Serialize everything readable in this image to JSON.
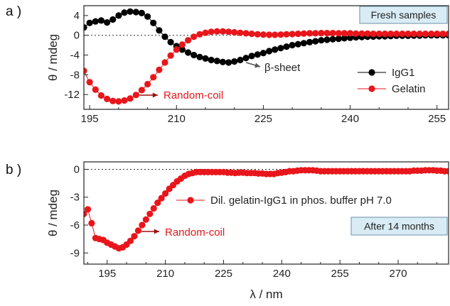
{
  "chart_data": [
    {
      "type": "scatter",
      "panel_label": "a )",
      "ylabel": "θ / mdeg",
      "xlabel": "",
      "xlim": [
        194,
        257
      ],
      "ylim": [
        -15,
        6
      ],
      "xticks": [
        195,
        210,
        225,
        240,
        255
      ],
      "yticks": [
        4,
        0,
        -4,
        -8,
        -12
      ],
      "zero_line": true,
      "box_label": "Fresh samples",
      "legend_position": "right",
      "series": [
        {
          "name": "IgG1",
          "color": "#000000",
          "x": [
            194,
            195,
            196,
            197,
            198,
            199,
            200,
            201,
            202,
            203,
            204,
            205,
            206,
            207,
            208,
            209,
            210,
            211,
            212,
            213,
            214,
            215,
            216,
            217,
            218,
            219,
            220,
            221,
            222,
            223,
            224,
            225,
            226,
            227,
            228,
            229,
            230,
            231,
            232,
            233,
            234,
            235,
            236,
            237,
            238,
            239,
            240,
            241,
            242,
            243,
            244,
            245,
            246,
            247,
            248,
            249,
            250,
            251,
            252,
            253,
            254,
            255,
            256,
            257
          ],
          "y": [
            1.6,
            2.5,
            2.8,
            3.0,
            2.6,
            3.2,
            4.0,
            4.6,
            4.8,
            4.7,
            4.5,
            3.8,
            2.5,
            1.0,
            -0.3,
            -1.4,
            -2.2,
            -2.9,
            -3.5,
            -4.0,
            -4.4,
            -4.7,
            -5.0,
            -5.2,
            -5.4,
            -5.5,
            -5.3,
            -5.0,
            -4.6,
            -4.2,
            -3.9,
            -3.6,
            -3.2,
            -2.9,
            -2.6,
            -2.3,
            -2.0,
            -1.8,
            -1.6,
            -1.4,
            -1.2,
            -1.0,
            -0.9,
            -0.8,
            -0.7,
            -0.6,
            -0.5,
            -0.4,
            -0.35,
            -0.3,
            -0.25,
            -0.2,
            -0.2,
            -0.15,
            -0.1,
            -0.1,
            -0.1,
            -0.05,
            -0.05,
            0.0,
            0.0,
            0.0,
            0.0,
            0.0
          ]
        },
        {
          "name": "Gelatin",
          "color": "#e8161b",
          "x": [
            194,
            195,
            196,
            197,
            198,
            199,
            200,
            201,
            202,
            203,
            204,
            205,
            206,
            207,
            208,
            209,
            210,
            211,
            212,
            213,
            214,
            215,
            216,
            217,
            218,
            219,
            220,
            221,
            222,
            223,
            224,
            225,
            226,
            227,
            228,
            229,
            230,
            231,
            232,
            233,
            234,
            235,
            236,
            237,
            238,
            239,
            240,
            241,
            242,
            243,
            244,
            245,
            246,
            247,
            248,
            249,
            250,
            251,
            252,
            253,
            254,
            255,
            256,
            257
          ],
          "y": [
            -7.2,
            -9.5,
            -11.0,
            -12.2,
            -12.9,
            -13.3,
            -13.4,
            -13.2,
            -12.8,
            -12.1,
            -11.1,
            -9.9,
            -8.5,
            -7.0,
            -5.5,
            -4.1,
            -2.9,
            -1.9,
            -1.0,
            -0.3,
            0.2,
            0.5,
            0.7,
            0.8,
            0.8,
            0.7,
            0.6,
            0.5,
            0.4,
            0.3,
            0.2,
            0.15,
            0.1,
            0.1,
            0.15,
            0.2,
            0.25,
            0.3,
            0.35,
            0.4,
            0.4,
            0.45,
            0.45,
            0.45,
            0.4,
            0.4,
            0.4,
            0.35,
            0.35,
            0.35,
            0.3,
            0.3,
            0.3,
            0.3,
            0.3,
            0.3,
            0.3,
            0.3,
            0.3,
            0.3,
            0.3,
            0.3,
            0.3,
            0.3
          ]
        }
      ],
      "annotations": [
        {
          "text": "β-sheet",
          "x": 220,
          "y": -5.5,
          "color": "#222222"
        },
        {
          "text": "Random-coil",
          "x": 200,
          "y": -13.4,
          "color": "#e8161b"
        }
      ]
    },
    {
      "type": "scatter",
      "panel_label": "b )",
      "ylabel": "θ / mdeg",
      "xlabel": "λ / nm",
      "xlim": [
        189,
        283
      ],
      "ylim": [
        -10.2,
        0.8
      ],
      "xticks": [
        195,
        210,
        225,
        240,
        255,
        270
      ],
      "yticks": [
        0,
        -3,
        -6,
        -9
      ],
      "zero_line": true,
      "box_label": "After 14 months",
      "legend_position": "right",
      "series": [
        {
          "name": "Dil. gelatin-IgG1 in phos. buffer pH 7.0",
          "color": "#e8161b",
          "x": [
            189,
            190,
            191,
            192,
            193,
            194,
            195,
            196,
            197,
            198,
            199,
            200,
            201,
            202,
            203,
            204,
            205,
            206,
            207,
            208,
            209,
            210,
            211,
            212,
            213,
            214,
            215,
            216,
            217,
            218,
            219,
            220,
            221,
            222,
            223,
            224,
            225,
            226,
            227,
            228,
            229,
            230,
            231,
            232,
            233,
            234,
            235,
            236,
            237,
            238,
            239,
            240,
            241,
            242,
            243,
            244,
            245,
            246,
            247,
            248,
            249,
            250,
            251,
            252,
            253,
            254,
            255,
            256,
            257,
            258,
            259,
            260,
            261,
            262,
            263,
            264,
            265,
            266,
            267,
            268,
            269,
            270,
            271,
            272,
            273,
            274,
            275,
            276,
            277,
            278,
            279,
            280,
            281,
            282,
            283
          ],
          "y": [
            -4.8,
            -4.3,
            -5.8,
            -7.4,
            -7.5,
            -7.6,
            -7.9,
            -8.1,
            -8.3,
            -8.5,
            -8.4,
            -8.1,
            -7.7,
            -7.2,
            -6.6,
            -6.0,
            -5.4,
            -4.8,
            -4.2,
            -3.6,
            -3.1,
            -2.6,
            -2.1,
            -1.7,
            -1.3,
            -1.0,
            -0.7,
            -0.5,
            -0.4,
            -0.3,
            -0.3,
            -0.3,
            -0.3,
            -0.3,
            -0.3,
            -0.3,
            -0.3,
            -0.35,
            -0.35,
            -0.4,
            -0.35,
            -0.35,
            -0.4,
            -0.4,
            -0.4,
            -0.45,
            -0.45,
            -0.5,
            -0.5,
            -0.5,
            -0.4,
            -0.35,
            -0.3,
            -0.2,
            -0.2,
            -0.15,
            -0.1,
            -0.1,
            -0.1,
            -0.1,
            -0.15,
            -0.2,
            -0.2,
            -0.2,
            -0.2,
            -0.2,
            -0.2,
            -0.2,
            -0.2,
            -0.2,
            -0.2,
            -0.2,
            -0.2,
            -0.2,
            -0.2,
            -0.2,
            -0.2,
            -0.2,
            -0.2,
            -0.2,
            -0.2,
            -0.2,
            -0.2,
            -0.2,
            -0.2,
            -0.15,
            -0.15,
            -0.15,
            -0.1,
            -0.1,
            -0.1,
            -0.15,
            -0.15,
            -0.2,
            -0.2
          ]
        }
      ],
      "annotations": [
        {
          "text": "Random-coil",
          "x": 200,
          "y": -8.5,
          "color": "#e8161b"
        }
      ]
    }
  ]
}
